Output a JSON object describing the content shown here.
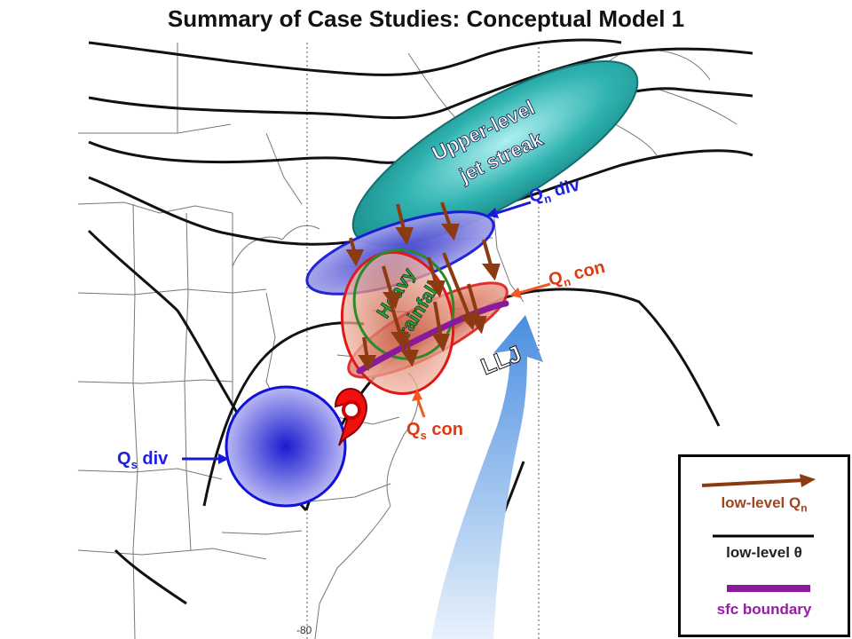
{
  "title": "Summary of Case Studies:  Conceptual Model 1",
  "labels": {
    "jet_line1": "Upper-level",
    "jet_line2": "jet streak",
    "qn_div_main": "Q",
    "qn_div_sub": "n",
    "qn_div_suffix": " div",
    "qn_con_main": "Q",
    "qn_con_sub": "n",
    "qn_con_suffix": " con",
    "heavy_line1": "Heavy",
    "heavy_line2": "rainfall",
    "llj": "LLJ",
    "qs_con_main": "Q",
    "qs_con_sub": "s",
    "qs_con_suffix": " con",
    "qs_div_main": "Q",
    "qs_div_sub": "s",
    "qs_div_suffix": " div",
    "map_tick": "-80"
  },
  "legend": {
    "qn_label": "low-level Q",
    "qn_sub": "n",
    "theta_label": "low-level θ",
    "boundary_label": "sfc boundary"
  },
  "colors": {
    "jet_fill": "#2fb3b0",
    "qn_div_fill": "#5a5ae0",
    "qn_con_fill": "#e85a3a",
    "heavy_outline": "#2a8a2a",
    "qs_div_fill": "#2a2ad8",
    "qn_arrow": "#8b3a12",
    "boundary": "#8a1a9a",
    "llj": "#5a9ee8",
    "qn_label_color": "#2020e0",
    "qn_con_label": "#e03a10",
    "legend_qn_text": "#a0441a",
    "legend_boundary_text": "#9a1aa8"
  },
  "icons": {
    "storm_symbol": "hurricane-symbol-icon"
  }
}
